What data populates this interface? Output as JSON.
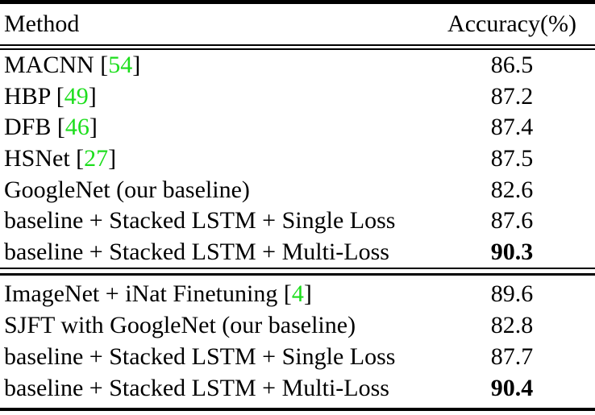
{
  "table": {
    "citation_color": "#1DDE1D",
    "text_color": "#000000",
    "header": {
      "method": "Method",
      "accuracy": "Accuracy(%)"
    },
    "sections": [
      {
        "rows": [
          {
            "label": "MACNN ",
            "open": "[",
            "cite": "54",
            "close": "]",
            "value": "86.5"
          },
          {
            "label": "HBP ",
            "open": "[",
            "cite": "49",
            "close": "]",
            "value": "87.2"
          },
          {
            "label": "DFB ",
            "open": "[",
            "cite": "46",
            "close": "]",
            "value": "87.4"
          },
          {
            "label": "HSNet ",
            "open": "[",
            "cite": "27",
            "close": "]",
            "value": "87.5"
          },
          {
            "label": "GoogleNet (our baseline)",
            "value": "82.6"
          },
          {
            "label": "baseline + Stacked LSTM + Single Loss",
            "value": "87.6"
          },
          {
            "label": "baseline + Stacked LSTM + Multi-Loss",
            "value": "90.3",
            "bold": true
          }
        ]
      },
      {
        "rows": [
          {
            "label": "ImageNet + iNat Finetuning ",
            "open": "[",
            "cite": "4",
            "close": "]",
            "value": "89.6"
          },
          {
            "label": "SJFT with GoogleNet (our baseline)",
            "value": "82.8"
          },
          {
            "label": "baseline + Stacked LSTM + Single Loss",
            "value": "87.7"
          },
          {
            "label": "baseline + Stacked LSTM + Multi-Loss",
            "value": "90.4",
            "bold": true
          }
        ]
      }
    ]
  }
}
